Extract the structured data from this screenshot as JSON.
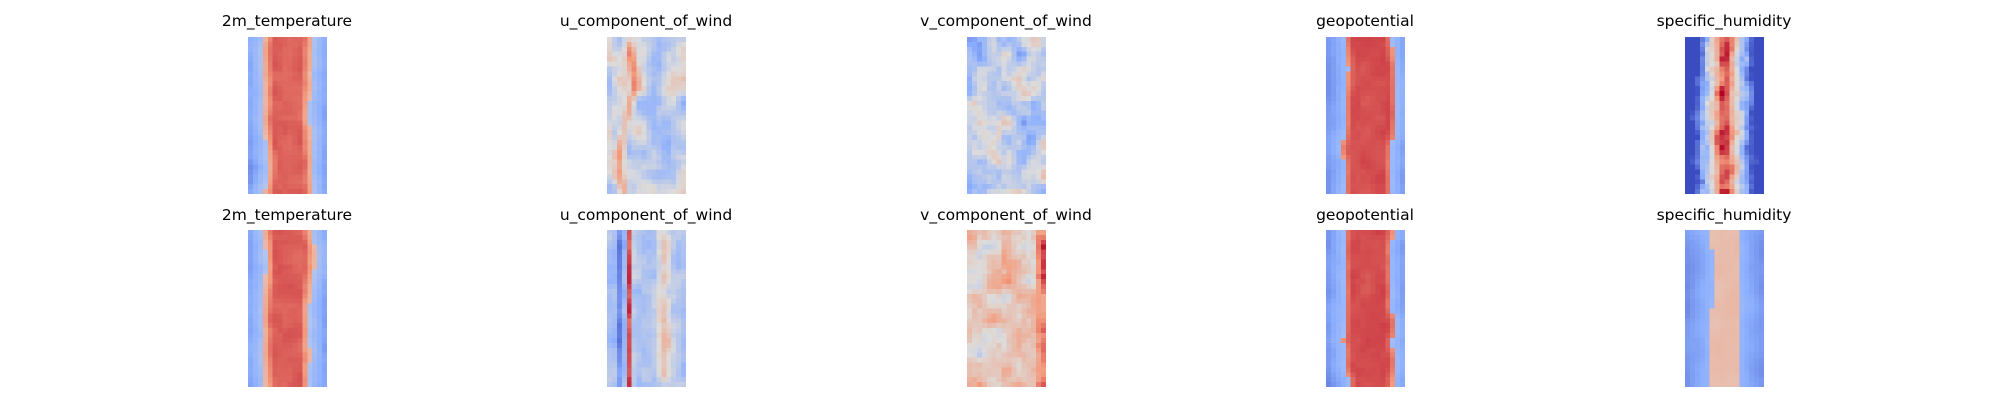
{
  "chart_data": {
    "type": "heatmap",
    "colormap": "coolwarm",
    "colormap_colors": {
      "low": "#3b4cc0",
      "mid": "#dddcdb",
      "high": "#b40426"
    },
    "axes_visible": false,
    "rows": [
      {
        "panels": [
          {
            "title": "2m_temperature",
            "pattern": "temperature"
          },
          {
            "title": "u_component_of_wind",
            "pattern": "uwind"
          },
          {
            "title": "v_component_of_wind",
            "pattern": "vwind"
          },
          {
            "title": "geopotential",
            "pattern": "geopotential"
          },
          {
            "title": "specific_humidity",
            "pattern": "humidity"
          }
        ]
      },
      {
        "panels": [
          {
            "title": "2m_temperature",
            "pattern": "temperature"
          },
          {
            "title": "u_component_of_wind",
            "pattern": "uwind_banded"
          },
          {
            "title": "v_component_of_wind",
            "pattern": "vwind_warm"
          },
          {
            "title": "geopotential",
            "pattern": "geopotential"
          },
          {
            "title": "specific_humidity",
            "pattern": "humidity_smooth"
          }
        ]
      }
    ]
  }
}
